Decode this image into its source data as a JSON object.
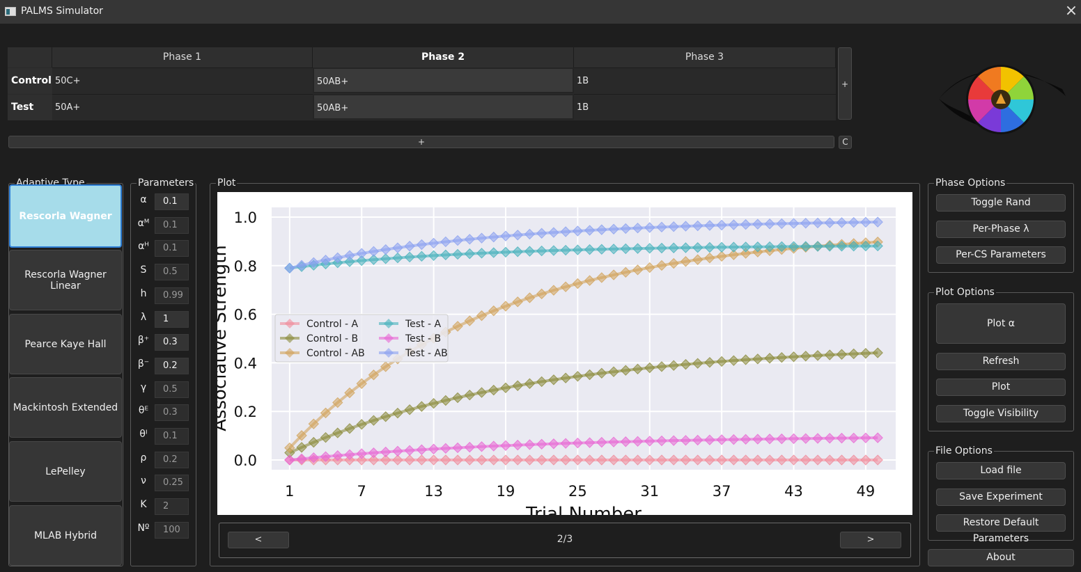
{
  "window": {
    "title": "PALMS Simulator"
  },
  "phase_table": {
    "headers": [
      "Phase 1",
      "Phase 2",
      "Phase 3"
    ],
    "rows": [
      {
        "name": "Control",
        "cells": [
          "50C+",
          "50AB+",
          "1B"
        ]
      },
      {
        "name": "Test",
        "cells": [
          "50A+",
          "50AB+",
          "1B"
        ]
      }
    ],
    "add_phase_label": "+",
    "add_row_label": "+",
    "clear_label": "C"
  },
  "adaptive_type": {
    "title": "Adaptive Type",
    "items": [
      "Rescorla Wagner",
      "Rescorla Wagner Linear",
      "Pearce Kaye Hall",
      "Mackintosh Extended",
      "LePelley",
      "MLAB Hybrid"
    ],
    "selected": "Rescorla Wagner"
  },
  "parameters": {
    "title": "Parameters",
    "items": [
      {
        "symbol": "α",
        "value": "0.1"
      },
      {
        "symbol": "αᴹ",
        "value": "0.1"
      },
      {
        "symbol": "αᴴ",
        "value": "0.1"
      },
      {
        "symbol": "S",
        "value": "0.5"
      },
      {
        "symbol": "h",
        "value": "0.99"
      },
      {
        "symbol": "λ",
        "value": "1"
      },
      {
        "symbol": "β⁺",
        "value": "0.3"
      },
      {
        "symbol": "β⁻",
        "value": "0.2"
      },
      {
        "symbol": "γ",
        "value": "0.5"
      },
      {
        "symbol": "θᴱ",
        "value": "0.3"
      },
      {
        "symbol": "θᴵ",
        "value": "0.1"
      },
      {
        "symbol": "ρ",
        "value": "0.2"
      },
      {
        "symbol": "ν",
        "value": "0.25"
      },
      {
        "symbol": "K",
        "value": "2"
      },
      {
        "symbol": "Nº",
        "value": "100"
      }
    ]
  },
  "plot": {
    "title": "Plot",
    "pager": {
      "prev_label": "<",
      "next_label": ">",
      "page_label": "2/3"
    }
  },
  "phase_options": {
    "title": "Phase Options",
    "buttons": [
      "Toggle Rand",
      "Per-Phase λ",
      "Per-CS Parameters"
    ]
  },
  "plot_options": {
    "title": "Plot Options",
    "buttons": [
      "Plot α",
      "Refresh",
      "Plot",
      "Toggle Visibility"
    ]
  },
  "file_options": {
    "title": "File Options",
    "buttons": [
      "Load file",
      "Save Experiment",
      "Restore Default Parameters"
    ]
  },
  "about_label": "About",
  "icons": {
    "close": "close-icon",
    "app": "app-icon",
    "logo": "palms-eye-logo"
  },
  "colors": {
    "accent": "#2f7fd6",
    "selected_bg": "#a6dcea",
    "plot_bg": "#eaeaf2"
  },
  "chart_data": {
    "type": "line",
    "xlabel": "Trial Number",
    "ylabel": "Associative Strength",
    "x_ticks": [
      1,
      7,
      13,
      19,
      25,
      31,
      37,
      43,
      49
    ],
    "y_ticks": [
      "0.0",
      "0.2",
      "0.4",
      "0.6",
      "0.8",
      "1.0"
    ],
    "xlim": [
      -0.5,
      51.5
    ],
    "ylim": [
      -0.04,
      1.04
    ],
    "grid": true,
    "legend_position": "center-left",
    "trials": 50,
    "series": [
      {
        "name": "Control - A",
        "color": "#f08a9a",
        "y0": 0.0,
        "y_end": 0.0,
        "k": 0.05
      },
      {
        "name": "Control - B",
        "color": "#8a8a3a",
        "y0": 0.03,
        "y_end": 0.48,
        "k": 0.05
      },
      {
        "name": "Control - AB",
        "color": "#d1a25a",
        "y0": 0.05,
        "y_end": 0.95,
        "k": 0.058
      },
      {
        "name": "Test - A",
        "color": "#45b0bb",
        "y0": 0.79,
        "y_end": 0.885,
        "k": 0.065
      },
      {
        "name": "Test - B",
        "color": "#e866d4",
        "y0": 0.0,
        "y_end": 0.1,
        "k": 0.05
      },
      {
        "name": "Test - AB",
        "color": "#8aa0f0",
        "y0": 0.79,
        "y_end": 0.99,
        "k": 0.06
      }
    ]
  }
}
